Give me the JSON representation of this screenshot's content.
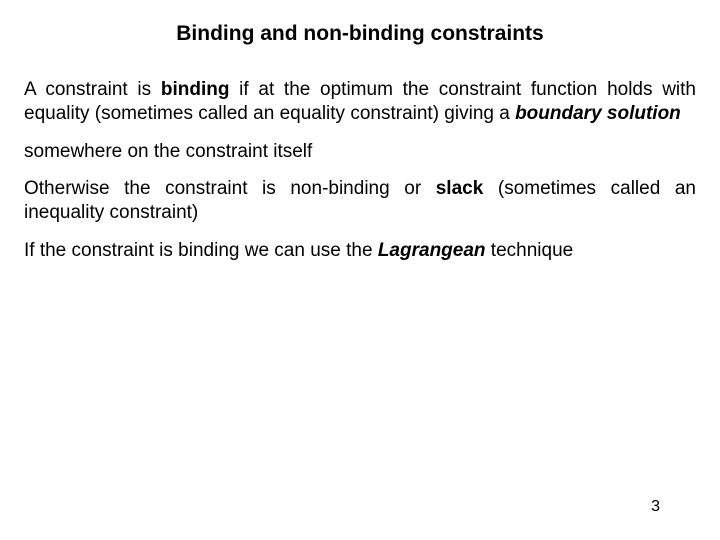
{
  "title": "Binding and non-binding constraints",
  "p1_a": "A constraint is ",
  "p1_b": "binding",
  "p1_c": " if at the optimum the constraint function holds with equality (sometimes called an equality constraint) giving a ",
  "p1_d": "boundary solution",
  "p2": "somewhere on the constraint itself",
  "p3_a": "Otherwise the constraint is non-binding or ",
  "p3_b": "slack",
  "p3_c": " (sometimes called an inequality constraint)",
  "p4_a": "If the constraint is binding we can use the ",
  "p4_b": "Lagrangean",
  "p4_c": " technique",
  "page_number": "3",
  "colors": {
    "bg": "#ffffff",
    "text": "#000000"
  },
  "typography": {
    "title_fontsize": 21,
    "body_fontsize": 19,
    "title_bold": true
  }
}
